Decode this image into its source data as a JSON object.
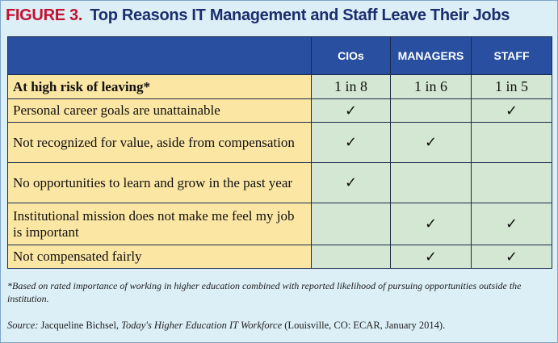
{
  "figure": {
    "label": "FIGURE 3.",
    "title": "Top Reasons IT Management and Staff Leave Their Jobs"
  },
  "table": {
    "columns": [
      "CIOs",
      "MANAGERS",
      "STAFF"
    ],
    "risk_row": {
      "label": "At high risk of leaving*",
      "values": [
        "1 in 8",
        "1 in 6",
        "1 in 5"
      ]
    },
    "check_glyph": "✓",
    "rows": [
      {
        "label": "Personal career goals are unattainable",
        "checks": [
          "✓",
          "",
          "✓"
        ]
      },
      {
        "label": "Not recognized for value, aside from compensation",
        "checks": [
          "✓",
          "✓",
          ""
        ]
      },
      {
        "label": "No opportunities to learn and grow in the past year",
        "checks": [
          "✓",
          "",
          ""
        ]
      },
      {
        "label": "Institutional mission does not make me feel my job is important",
        "checks": [
          "",
          "✓",
          "✓"
        ]
      },
      {
        "label": "Not compensated fairly",
        "checks": [
          "",
          "✓",
          "✓"
        ]
      }
    ]
  },
  "footnote": "*Based on rated importance of working in higher education combined with reported likelihood of pursuing opportunities outside the institution.",
  "source": {
    "prefix": "Source:",
    "author": " Jacqueline Bichsel, ",
    "work": "Today's Higher Education IT Workforce",
    "rest": " (Louisville, CO: ECAR, January 2014)."
  },
  "colors": {
    "title": "#1b2f6e",
    "label_accent": "#c4122f",
    "header_bg": "#284fa0",
    "label_bg": "#fbe6a4",
    "cell_bg": "#d4e7d2",
    "panel_bg": "#dceef6"
  }
}
